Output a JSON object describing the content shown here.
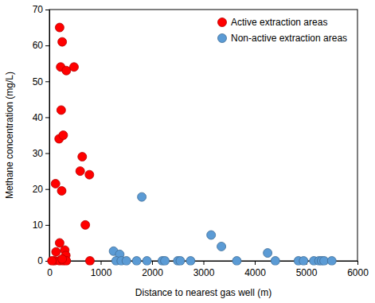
{
  "chart_data": {
    "type": "scatter",
    "x_label": "Distance to nearest gas well (m)",
    "y_label": "Methane concentration (mg/L)",
    "xlim": [
      0,
      6000
    ],
    "xticks": [
      0,
      1000,
      2000,
      3000,
      4000,
      5000,
      6000
    ],
    "ylim": [
      0,
      70
    ],
    "yticks": [
      0,
      10,
      20,
      30,
      40,
      50,
      60,
      70
    ],
    "grid": false,
    "legend": "top-right",
    "series": [
      {
        "name": "Active extraction areas",
        "color": "#ff0000",
        "marker": "circle",
        "x": [
          200,
          250,
          220,
          480,
          330,
          230,
          190,
          270,
          120,
          240,
          640,
          600,
          780,
          700,
          200,
          130,
          300,
          320,
          100,
          200,
          270,
          330,
          790,
          50,
          250
        ],
        "values": [
          65,
          61,
          54,
          54,
          53,
          42,
          34,
          35,
          21.5,
          19.5,
          29,
          25,
          24,
          10,
          5,
          2.5,
          3,
          1.5,
          0,
          0,
          0,
          0,
          0,
          0,
          0.5
        ]
      },
      {
        "name": "Non-active extraction areas",
        "color": "#5b9bd5",
        "marker": "circle",
        "x": [
          1250,
          1370,
          1300,
          1400,
          1500,
          1700,
          1800,
          1900,
          2200,
          2250,
          2500,
          2550,
          2750,
          3150,
          3350,
          3650,
          4250,
          4400,
          4850,
          4950,
          5150,
          5250,
          5300,
          5350,
          5500
        ],
        "values": [
          2.7,
          1.8,
          0,
          0,
          0,
          0,
          17.8,
          0,
          0,
          0,
          0,
          0,
          0,
          7.2,
          4,
          0,
          2.2,
          0,
          0,
          0,
          0,
          0,
          0,
          0,
          0
        ]
      }
    ]
  }
}
